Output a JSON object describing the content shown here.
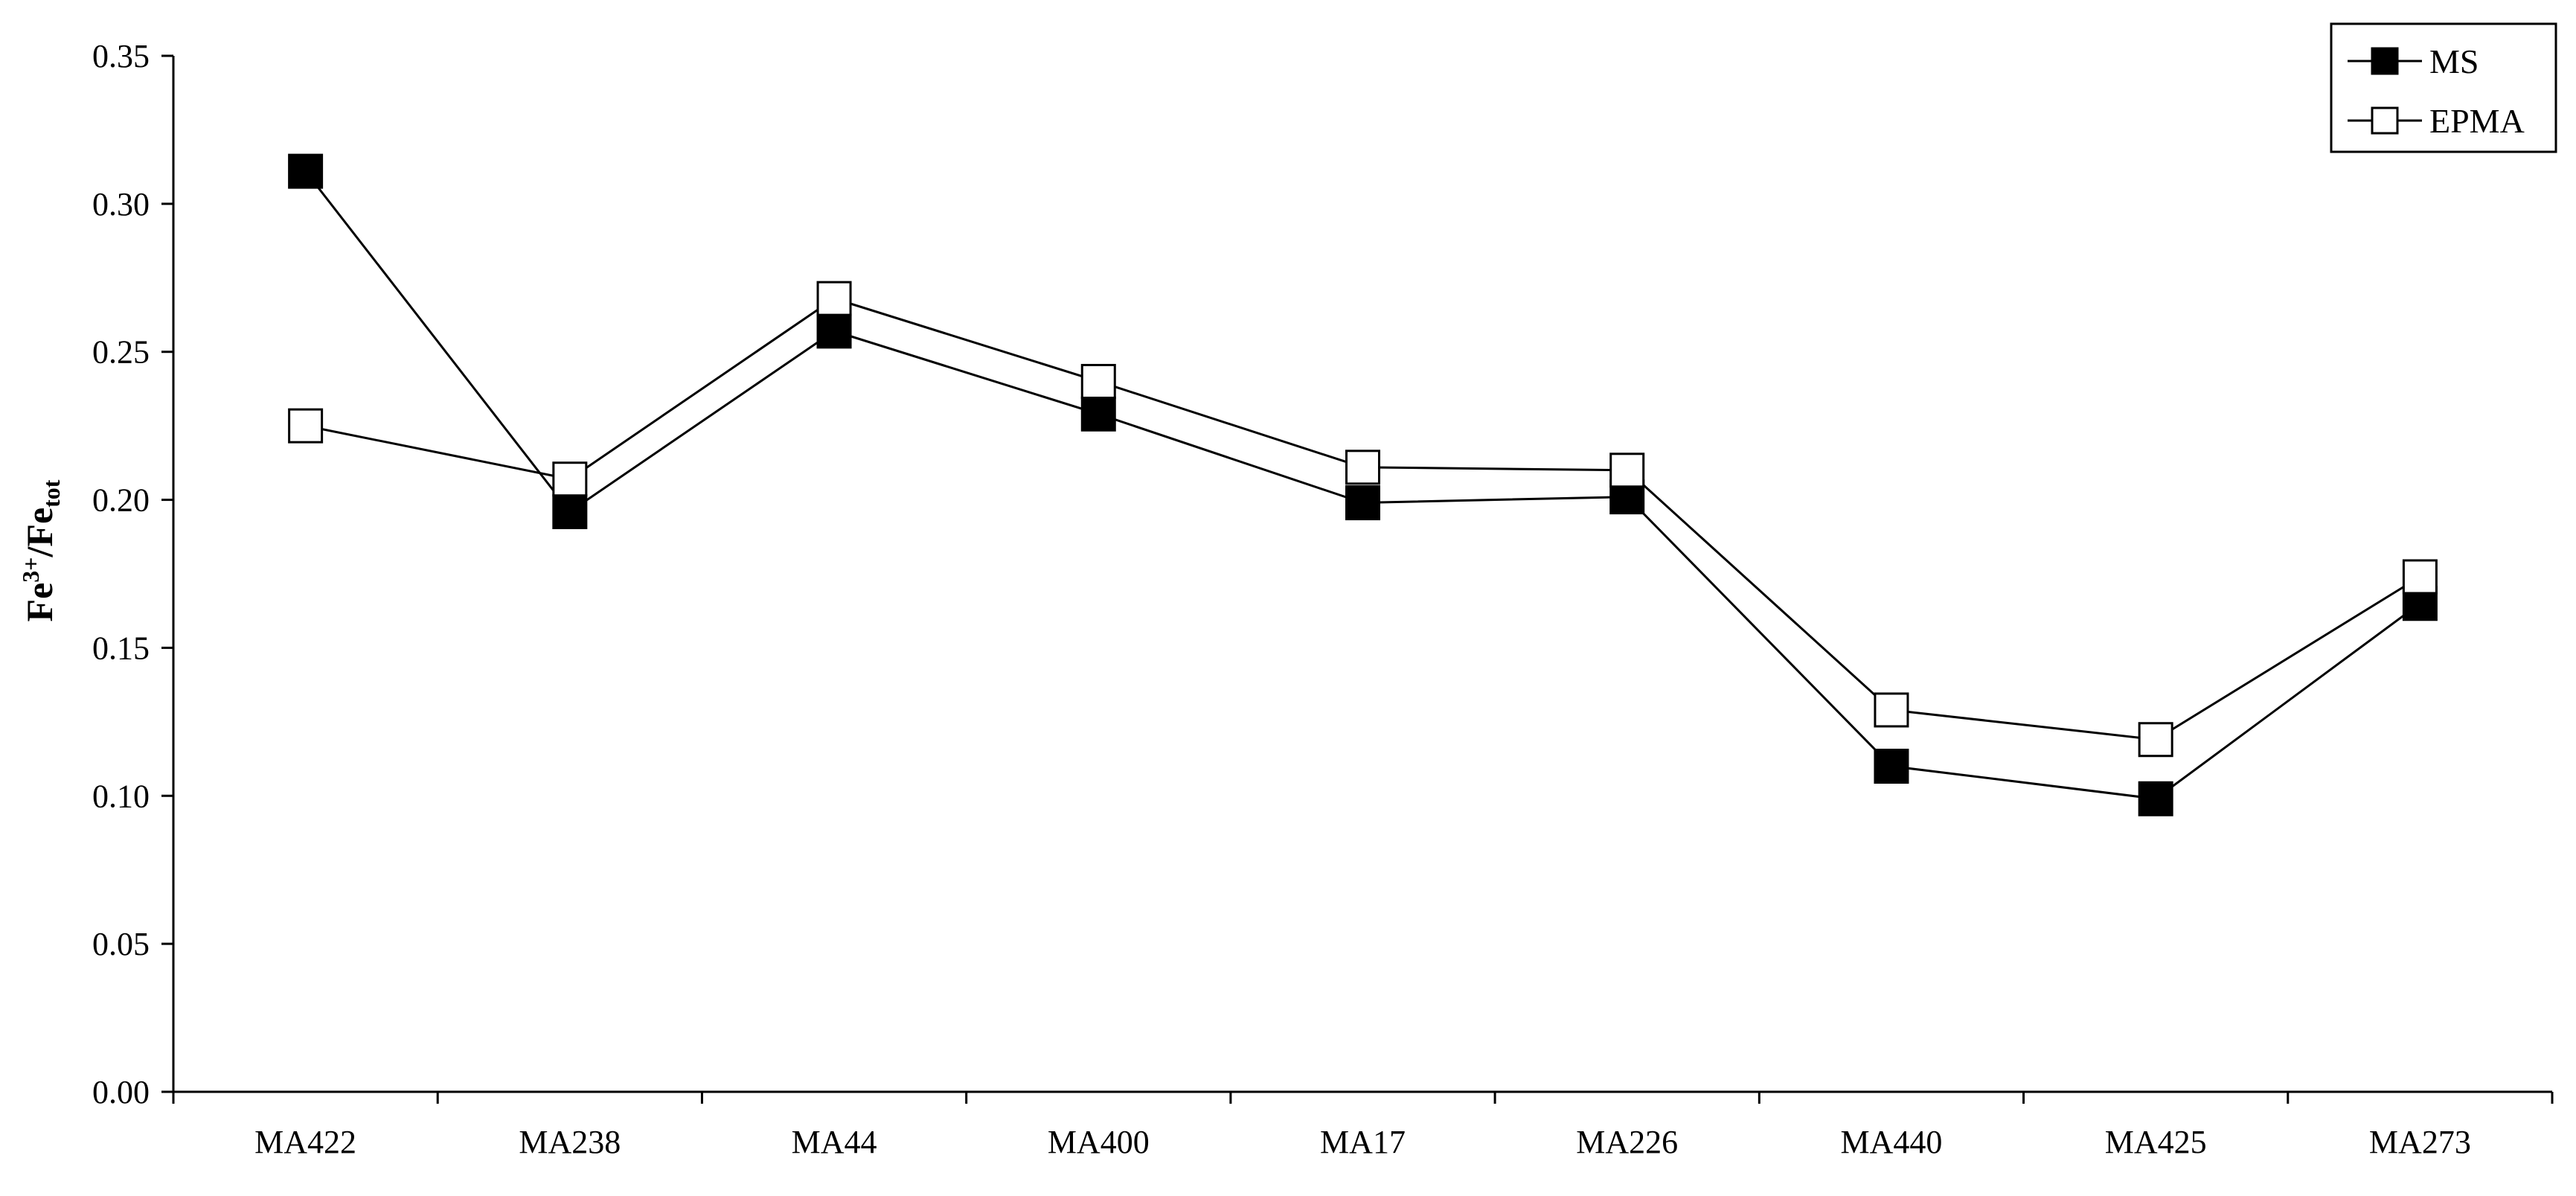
{
  "chart_data": {
    "type": "line",
    "categories": [
      "MA422",
      "MA238",
      "MA44",
      "MA400",
      "MA17",
      "MA226",
      "MA440",
      "MA425",
      "MA273"
    ],
    "series": [
      {
        "name": "MS",
        "marker": "filled-square",
        "color": "#000000",
        "values": [
          0.311,
          0.196,
          0.257,
          0.229,
          0.199,
          0.201,
          0.11,
          0.099,
          0.165
        ]
      },
      {
        "name": "EPMA",
        "marker": "open-square",
        "color": "#000000",
        "values": [
          0.225,
          0.207,
          0.268,
          0.24,
          0.211,
          0.21,
          0.129,
          0.119,
          0.174
        ]
      }
    ],
    "yaxis": {
      "title_main": "Fe",
      "title_sup": "3+",
      "title_mid": "/Fe",
      "title_sub": "tot",
      "ylim": [
        0,
        0.35
      ],
      "ticks": [
        "0.00",
        "0.05",
        "0.10",
        "0.15",
        "0.20",
        "0.25",
        "0.30",
        "0.35"
      ]
    },
    "legend": {
      "position": "top-right",
      "entries": [
        "MS",
        "EPMA"
      ]
    },
    "grid": false
  }
}
